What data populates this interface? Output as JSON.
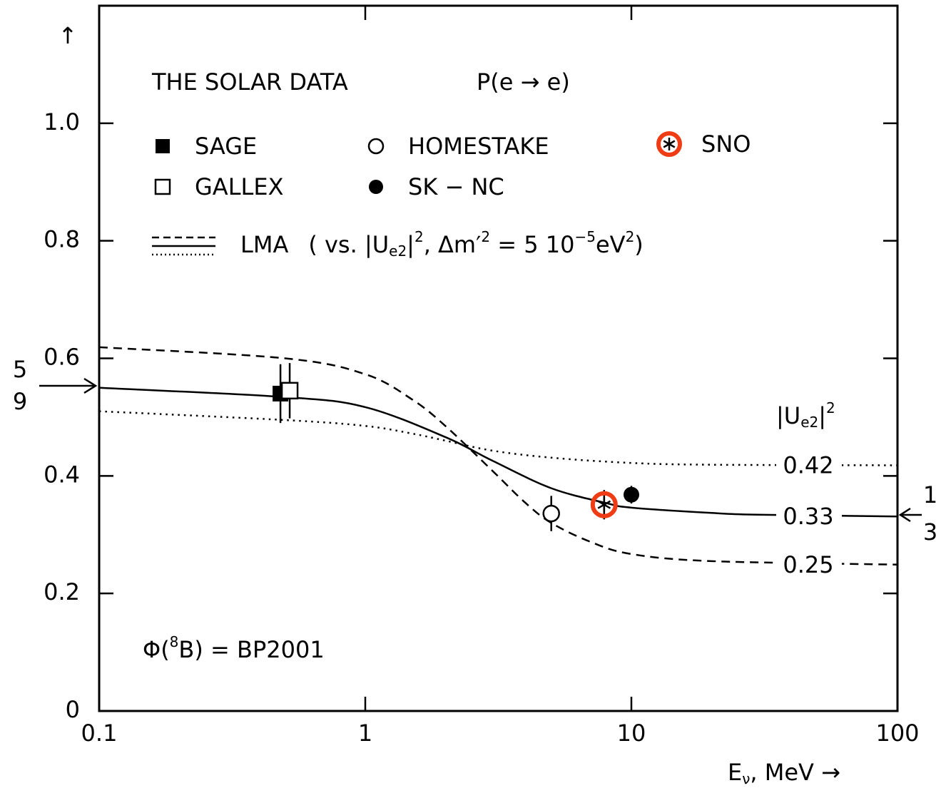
{
  "chart_data": {
    "type": "scatter",
    "title": "THE SOLAR DATA",
    "subtitle": "P(e → e)",
    "y_label": "↑",
    "x_label": [
      "E",
      "ν",
      ", MeV →"
    ],
    "xscale": "log",
    "xlim": [
      0.1,
      100
    ],
    "xticks": [
      0.1,
      1,
      10,
      100
    ],
    "ylim": [
      0,
      1.2
    ],
    "yticks": [
      0,
      0.2,
      0.4,
      0.6,
      0.8,
      {
        "value": 1,
        "label": "1.0"
      }
    ],
    "series": [
      {
        "name": "SAGE",
        "marker": "filled-square",
        "color": "#000000",
        "x": [
          0.48
        ],
        "values": [
          0.54
        ],
        "errors": [
          0.05
        ]
      },
      {
        "name": "GALLEX",
        "marker": "open-square",
        "color": "#000000",
        "x": [
          0.52
        ],
        "values": [
          0.545
        ],
        "errors": [
          0.047
        ]
      },
      {
        "name": "HOMESTAKE",
        "marker": "open-circle",
        "color": "#000000",
        "x": [
          5
        ],
        "values": [
          0.336
        ],
        "errors": [
          0.03
        ]
      },
      {
        "name": "SK − NC",
        "marker": "filled-circle",
        "color": "#000000",
        "x": [
          10
        ],
        "values": [
          0.368
        ],
        "errors": [
          0.015
        ]
      },
      {
        "name": "SNO",
        "marker": "asterisk",
        "color": "#000000",
        "highlight": "#f03c14",
        "x": [
          7.9
        ],
        "values": [
          0.351
        ],
        "errors": [
          0.025
        ]
      }
    ],
    "curves_title": [
      "|U",
      "e2",
      "|",
      "2"
    ],
    "curves": [
      {
        "name": "0.42",
        "style": "dotted",
        "x": [
          0.1,
          0.5,
          1,
          1.5,
          2,
          3,
          5,
          10,
          20,
          100
        ],
        "values": [
          0.51,
          0.495,
          0.485,
          0.472,
          0.46,
          0.443,
          0.431,
          0.422,
          0.419,
          0.418
        ]
      },
      {
        "name": "0.33",
        "style": "solid",
        "x": [
          0.1,
          0.5,
          1,
          2,
          3,
          5,
          8,
          10,
          20,
          30,
          100
        ],
        "values": [
          0.55,
          0.534,
          0.517,
          0.466,
          0.426,
          0.379,
          0.354,
          0.346,
          0.337,
          0.334,
          0.331
        ]
      },
      {
        "name": "0.25",
        "style": "dashed",
        "x": [
          0.1,
          0.5,
          1,
          1.5,
          2,
          3,
          4,
          5,
          7,
          10,
          20,
          100
        ],
        "values": [
          0.619,
          0.6,
          0.573,
          0.53,
          0.485,
          0.409,
          0.354,
          0.32,
          0.288,
          0.267,
          0.255,
          0.249
        ]
      }
    ],
    "lma_label": [
      "LMA",
      "( vs. |U",
      "e2",
      "|",
      "2",
      ", Δm′",
      "2",
      " = 5  10",
      "−5",
      "eV",
      "2",
      ")"
    ],
    "flux_label": [
      "Φ(",
      "8",
      "B) = BP2001"
    ],
    "fraction_high": [
      "5",
      "9"
    ],
    "fraction_low": [
      "1",
      "3"
    ]
  }
}
